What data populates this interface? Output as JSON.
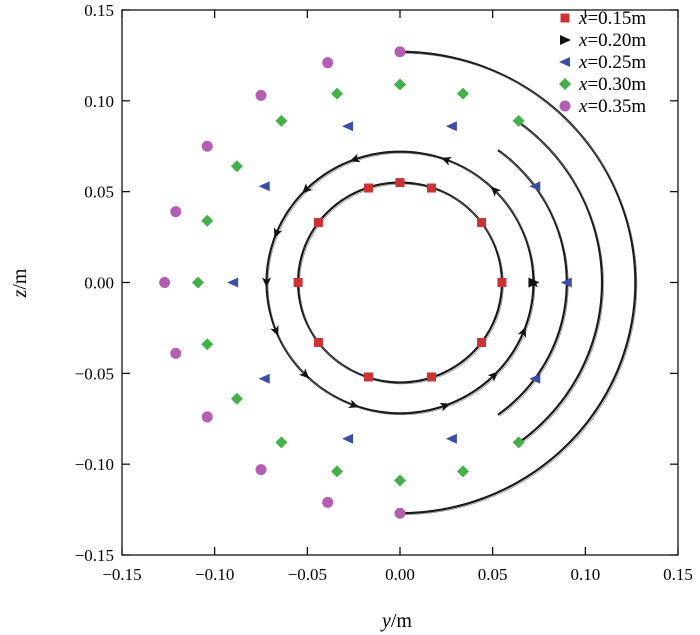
{
  "chart_data": {
    "type": "scatter",
    "title": "",
    "xlabel": {
      "var": "y",
      "unit": "/m"
    },
    "ylabel": {
      "var": "z",
      "unit": "/m"
    },
    "xlim": [
      -0.15,
      0.15
    ],
    "ylim": [
      -0.15,
      0.15
    ],
    "x_ticks": [
      "−0.15",
      "−0.10",
      "−0.05",
      "0.00",
      "0.05",
      "0.10",
      "0.15"
    ],
    "y_ticks": [
      "0.15",
      "0.10",
      "0.05",
      "0.00",
      "−0.05",
      "−0.10",
      "−0.15"
    ],
    "grid": false,
    "legend_position": "top-right",
    "series": [
      {
        "name": {
          "var": "x",
          "value": "=0.15m"
        },
        "marker": "square",
        "color": "#cc3333",
        "radius": 0.055,
        "arc_start_deg": -90,
        "arc_end_deg": 270,
        "arrows_deg": [],
        "points": [
          [
            0.0,
            0.055
          ],
          [
            0.017,
            0.052
          ],
          [
            0.044,
            0.033
          ],
          [
            0.055,
            0.0
          ],
          [
            0.044,
            -0.033
          ],
          [
            0.017,
            -0.052
          ],
          [
            -0.017,
            -0.052
          ],
          [
            -0.044,
            -0.033
          ],
          [
            -0.055,
            0.0
          ],
          [
            -0.044,
            0.033
          ],
          [
            -0.017,
            0.052
          ]
        ]
      },
      {
        "name": {
          "var": "x",
          "value": "=0.20m"
        },
        "marker": "triangle-right",
        "color": "#111111",
        "radius": 0.072,
        "arc_start_deg": -90,
        "arc_end_deg": 270,
        "arrows_deg": [
          45,
          70,
          110,
          135,
          158,
          180,
          202,
          225,
          250,
          290,
          315,
          338,
          0
        ],
        "points": [
          [
            0.072,
            0.0
          ]
        ]
      },
      {
        "name": {
          "var": "x",
          "value": "=0.25m"
        },
        "marker": "triangle-left",
        "color": "#3b4fa3",
        "radius": 0.09,
        "arc_start_deg": -54,
        "arc_end_deg": 54,
        "arrows_deg": [],
        "points": [
          [
            0.09,
            0.0
          ],
          [
            0.073,
            0.053
          ],
          [
            0.028,
            0.086
          ],
          [
            -0.028,
            0.086
          ],
          [
            -0.073,
            0.053
          ],
          [
            -0.09,
            0.0
          ],
          [
            -0.073,
            -0.053
          ],
          [
            -0.028,
            -0.086
          ],
          [
            0.028,
            -0.086
          ],
          [
            0.073,
            -0.053
          ]
        ]
      },
      {
        "name": {
          "var": "x",
          "value": "=0.30m"
        },
        "marker": "diamond",
        "color": "#44b04a",
        "radius": 0.109,
        "arc_start_deg": -54,
        "arc_end_deg": 54,
        "arrows_deg": [],
        "points": [
          [
            0.064,
            0.089
          ],
          [
            0.034,
            0.104
          ],
          [
            0.0,
            0.109
          ],
          [
            -0.034,
            0.104
          ],
          [
            -0.064,
            0.089
          ],
          [
            -0.088,
            0.064
          ],
          [
            -0.104,
            0.034
          ],
          [
            -0.109,
            0.0
          ],
          [
            -0.104,
            -0.034
          ],
          [
            -0.088,
            -0.064
          ],
          [
            -0.064,
            -0.088
          ],
          [
            -0.034,
            -0.104
          ],
          [
            0.0,
            -0.109
          ],
          [
            0.034,
            -0.104
          ],
          [
            0.064,
            -0.088
          ]
        ]
      },
      {
        "name": {
          "var": "x",
          "value": "=0.35m"
        },
        "marker": "circle",
        "color": "#b35db3",
        "radius": 0.127,
        "arc_start_deg": -90,
        "arc_end_deg": 90,
        "arrows_deg": [],
        "points": [
          [
            0.0,
            0.127
          ],
          [
            -0.039,
            0.121
          ],
          [
            -0.075,
            0.103
          ],
          [
            -0.104,
            0.075
          ],
          [
            -0.121,
            0.039
          ],
          [
            -0.127,
            0.0
          ],
          [
            -0.121,
            -0.039
          ],
          [
            -0.104,
            -0.074
          ],
          [
            -0.075,
            -0.103
          ],
          [
            -0.039,
            -0.121
          ],
          [
            0.0,
            -0.127
          ]
        ]
      }
    ]
  }
}
